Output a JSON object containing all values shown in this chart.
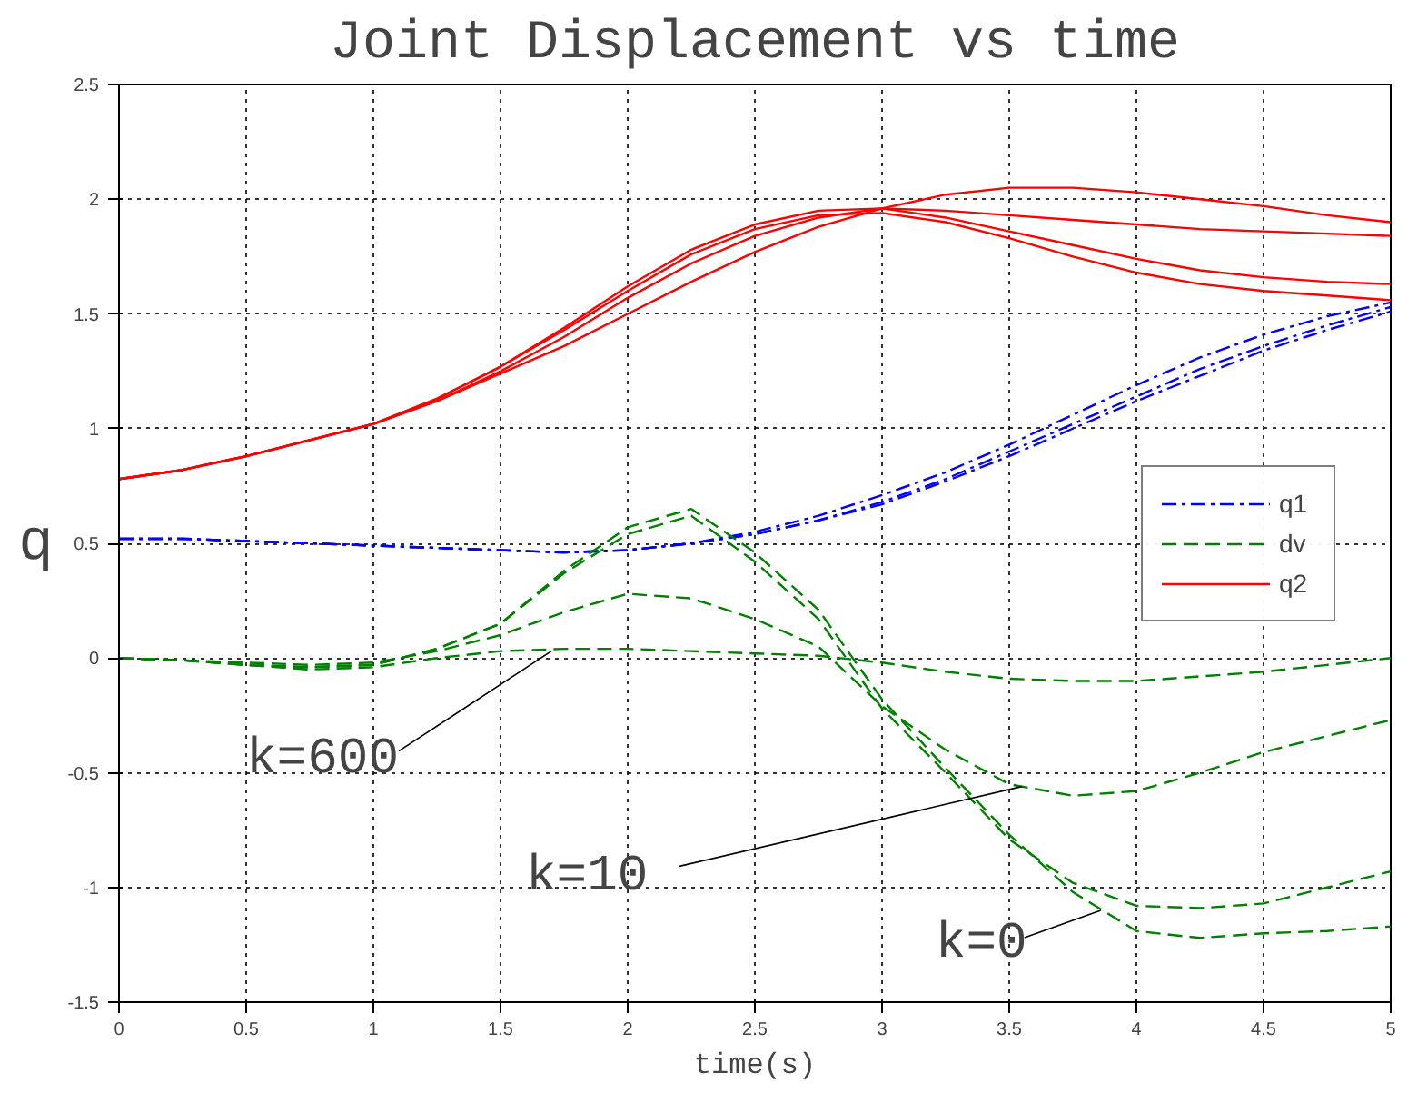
{
  "chart_data": {
    "type": "line",
    "title": "Joint Displacement vs time",
    "xlabel": "time(s)",
    "ylabel": "q",
    "x": [
      0,
      0.25,
      0.5,
      0.75,
      1,
      1.25,
      1.5,
      1.75,
      2,
      2.25,
      2.5,
      2.75,
      3,
      3.25,
      3.5,
      3.75,
      4,
      4.25,
      4.5,
      4.75,
      5
    ],
    "series": [
      {
        "name": "q1",
        "color": "#0000ff",
        "line_style": "dashdot",
        "values": [
          0.52,
          0.52,
          0.51,
          0.5,
          0.49,
          0.48,
          0.47,
          0.46,
          0.47,
          0.5,
          0.55,
          0.62,
          0.71,
          0.81,
          0.93,
          1.06,
          1.19,
          1.31,
          1.41,
          1.49,
          1.55
        ]
      },
      {
        "color": "#0000ff",
        "line_style": "dashdot",
        "values": [
          0.52,
          0.52,
          0.51,
          0.5,
          0.49,
          0.48,
          0.47,
          0.46,
          0.47,
          0.5,
          0.54,
          0.6,
          0.68,
          0.78,
          0.9,
          1.02,
          1.14,
          1.26,
          1.36,
          1.45,
          1.53
        ]
      },
      {
        "color": "#0000ff",
        "line_style": "dashdot",
        "values": [
          0.52,
          0.52,
          0.51,
          0.5,
          0.49,
          0.48,
          0.47,
          0.46,
          0.47,
          0.5,
          0.54,
          0.6,
          0.67,
          0.77,
          0.88,
          1.0,
          1.12,
          1.23,
          1.34,
          1.43,
          1.51
        ]
      },
      {
        "name": "dv",
        "color": "#008000",
        "line_style": "dashed",
        "values": [
          0,
          -0.01,
          -0.03,
          -0.04,
          -0.03,
          0.04,
          0.15,
          0.38,
          0.57,
          0.65,
          0.46,
          0.21,
          -0.18,
          -0.48,
          -0.77,
          -1.02,
          -1.19,
          -1.22,
          -1.2,
          -1.19,
          -1.17
        ]
      },
      {
        "color": "#008000",
        "line_style": "dashed",
        "values": [
          0,
          -0.01,
          -0.03,
          -0.04,
          -0.03,
          0.04,
          0.15,
          0.37,
          0.54,
          0.62,
          0.42,
          0.17,
          -0.22,
          -0.5,
          -0.79,
          -0.98,
          -1.08,
          -1.09,
          -1.07,
          -1.0,
          -0.93
        ]
      },
      {
        "color": "#008000",
        "line_style": "dashed",
        "values": [
          0,
          -0.01,
          -0.02,
          -0.03,
          -0.02,
          0.03,
          0.1,
          0.2,
          0.28,
          0.26,
          0.17,
          0.05,
          -0.21,
          -0.4,
          -0.55,
          -0.6,
          -0.58,
          -0.5,
          -0.41,
          -0.34,
          -0.27
        ]
      },
      {
        "color": "#008000",
        "line_style": "dashed",
        "values": [
          0,
          -0.01,
          -0.03,
          -0.05,
          -0.04,
          0,
          0.03,
          0.04,
          0.04,
          0.03,
          0.02,
          0.01,
          -0.02,
          -0.06,
          -0.09,
          -0.1,
          -0.1,
          -0.08,
          -0.06,
          -0.03,
          0
        ]
      },
      {
        "name": "q2",
        "color": "#ff0000",
        "line_style": "solid",
        "values": [
          0.78,
          0.82,
          0.88,
          0.95,
          1.02,
          1.12,
          1.24,
          1.36,
          1.5,
          1.64,
          1.77,
          1.88,
          1.96,
          2.02,
          2.05,
          2.05,
          2.03,
          2.0,
          1.97,
          1.93,
          1.9
        ]
      },
      {
        "color": "#ff0000",
        "line_style": "solid",
        "values": [
          0.78,
          0.82,
          0.88,
          0.95,
          1.02,
          1.12,
          1.25,
          1.4,
          1.57,
          1.72,
          1.84,
          1.92,
          1.96,
          1.95,
          1.93,
          1.91,
          1.89,
          1.87,
          1.86,
          1.85,
          1.84
        ]
      },
      {
        "color": "#ff0000",
        "line_style": "solid",
        "values": [
          0.78,
          0.82,
          0.88,
          0.95,
          1.02,
          1.13,
          1.27,
          1.44,
          1.62,
          1.78,
          1.89,
          1.95,
          1.96,
          1.92,
          1.86,
          1.8,
          1.74,
          1.69,
          1.66,
          1.64,
          1.63
        ]
      },
      {
        "color": "#ff0000",
        "line_style": "solid",
        "values": [
          0.78,
          0.82,
          0.88,
          0.95,
          1.02,
          1.13,
          1.27,
          1.43,
          1.6,
          1.76,
          1.87,
          1.93,
          1.94,
          1.9,
          1.83,
          1.75,
          1.68,
          1.63,
          1.6,
          1.58,
          1.56
        ]
      }
    ],
    "xlim": [
      0,
      5
    ],
    "xticks": [
      0,
      0.5,
      1,
      1.5,
      2,
      2.5,
      3,
      3.5,
      4,
      4.5,
      5
    ],
    "ylim": [
      -1.5,
      2.5
    ],
    "yticks": [
      -1.5,
      -1,
      -0.5,
      0,
      0.5,
      1,
      1.5,
      2,
      2.5
    ],
    "grid": true,
    "legend": "right",
    "annotations": [
      {
        "text": "k=600",
        "x": 1.7,
        "y": 0.03
      },
      {
        "text": "k=10",
        "x": 3.55,
        "y": -0.56
      },
      {
        "text": "k=0",
        "x": 3.86,
        "y": -1.1
      }
    ]
  }
}
